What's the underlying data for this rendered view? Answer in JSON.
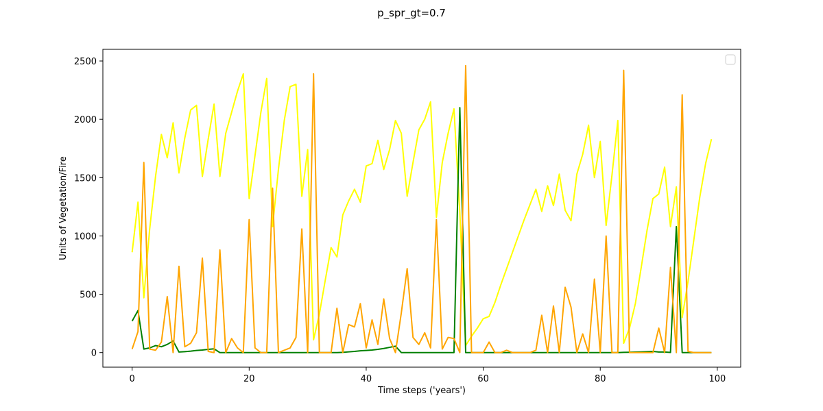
{
  "chart_data": {
    "type": "line",
    "title": "p_spr_gt=0.7",
    "xlabel": "Time steps ('years')",
    "ylabel": "Units of Vegetation/Fire",
    "xlim": [
      -5,
      104
    ],
    "ylim": [
      -125,
      2600
    ],
    "xticks": [
      0,
      20,
      40,
      60,
      80,
      100
    ],
    "yticks": [
      0,
      500,
      1000,
      1500,
      2000,
      2500
    ],
    "grid": false,
    "legend": "top-right",
    "series": [
      {
        "color": "#ffff00",
        "x": [
          0,
          1,
          2,
          3,
          4,
          5,
          6,
          7,
          8,
          9,
          10,
          11,
          12,
          13,
          14,
          15,
          16,
          17,
          18,
          19,
          20,
          21,
          22,
          23,
          24,
          25,
          26,
          27,
          28,
          29,
          30,
          31,
          32,
          33,
          34,
          35,
          36,
          37,
          38,
          39,
          40,
          41,
          42,
          43,
          44,
          45,
          46,
          47,
          48,
          49,
          50,
          51,
          52,
          53,
          54,
          55,
          56,
          57,
          58,
          59,
          60,
          61,
          62,
          63,
          64,
          65,
          66,
          67,
          68,
          69,
          70,
          71,
          72,
          73,
          74,
          75,
          76,
          77,
          78,
          79,
          80,
          81,
          82,
          83,
          84,
          85,
          86,
          87,
          88,
          89,
          90,
          91,
          92,
          93,
          94,
          95,
          96,
          97,
          98,
          99
        ],
        "y": [
          860,
          1290,
          470,
          1060,
          1510,
          1870,
          1670,
          1970,
          1540,
          1840,
          2080,
          2120,
          1510,
          1830,
          2130,
          1510,
          1880,
          2060,
          2240,
          2390,
          1320,
          1690,
          2060,
          2350,
          1080,
          1570,
          1990,
          2280,
          2300,
          1340,
          1740,
          110,
          330,
          620,
          900,
          820,
          1180,
          1300,
          1400,
          1290,
          1600,
          1620,
          1820,
          1570,
          1740,
          1990,
          1880,
          1340,
          1630,
          1910,
          2000,
          2150,
          1160,
          1630,
          1880,
          2090,
          1200,
          60,
          140,
          210,
          290,
          310,
          430,
          580,
          720,
          860,
          1000,
          1140,
          1270,
          1400,
          1210,
          1430,
          1260,
          1530,
          1220,
          1130,
          1530,
          1700,
          1950,
          1500,
          1810,
          1090,
          1520,
          1990,
          80,
          210,
          420,
          730,
          1050,
          1320,
          1360,
          1590,
          1080,
          1420,
          300,
          610,
          970,
          1330,
          1620,
          1830
        ]
      },
      {
        "color": "#008000",
        "x": [
          0,
          1,
          2,
          3,
          4,
          5,
          6,
          7,
          8,
          9,
          10,
          11,
          12,
          13,
          14,
          15,
          16,
          17,
          18,
          19,
          20,
          21,
          22,
          23,
          24,
          25,
          26,
          27,
          28,
          29,
          30,
          31,
          32,
          33,
          34,
          35,
          36,
          37,
          38,
          39,
          40,
          41,
          42,
          43,
          44,
          45,
          46,
          47,
          48,
          49,
          50,
          51,
          52,
          53,
          54,
          55,
          56,
          57,
          58,
          59,
          60,
          61,
          62,
          63,
          64,
          65,
          66,
          67,
          68,
          69,
          70,
          71,
          72,
          73,
          74,
          75,
          76,
          77,
          78,
          79,
          80,
          81,
          82,
          83,
          84,
          85,
          86,
          87,
          88,
          89,
          90,
          91,
          92,
          93,
          94,
          95,
          96,
          97,
          98,
          99
        ],
        "y": [
          270,
          360,
          30,
          40,
          60,
          50,
          70,
          100,
          5,
          8,
          12,
          18,
          22,
          28,
          32,
          0,
          0,
          0,
          0,
          0,
          0,
          0,
          0,
          0,
          0,
          0,
          0,
          0,
          0,
          0,
          0,
          0,
          0,
          0,
          0,
          0,
          2,
          6,
          10,
          15,
          18,
          22,
          28,
          35,
          45,
          55,
          0,
          0,
          0,
          0,
          0,
          0,
          0,
          0,
          0,
          0,
          2100,
          0,
          0,
          0,
          0,
          0,
          0,
          0,
          0,
          0,
          0,
          0,
          0,
          0,
          0,
          0,
          0,
          0,
          0,
          0,
          0,
          0,
          0,
          0,
          0,
          0,
          0,
          0,
          2,
          3,
          4,
          6,
          8,
          10,
          5,
          5,
          1,
          1080,
          0,
          0,
          0,
          0,
          0,
          0
        ]
      },
      {
        "color": "#ffa500",
        "x": [
          0,
          1,
          2,
          3,
          4,
          5,
          6,
          7,
          8,
          9,
          10,
          11,
          12,
          13,
          14,
          15,
          16,
          17,
          18,
          19,
          20,
          21,
          22,
          23,
          24,
          25,
          26,
          27,
          28,
          29,
          30,
          31,
          32,
          33,
          34,
          35,
          36,
          37,
          38,
          39,
          40,
          41,
          42,
          43,
          44,
          45,
          46,
          47,
          48,
          49,
          50,
          51,
          52,
          53,
          54,
          55,
          56,
          57,
          58,
          59,
          60,
          61,
          62,
          63,
          64,
          65,
          66,
          67,
          68,
          69,
          70,
          71,
          72,
          73,
          74,
          75,
          76,
          77,
          78,
          79,
          80,
          81,
          82,
          83,
          84,
          85,
          86,
          87,
          88,
          89,
          90,
          91,
          92,
          93,
          94,
          95,
          96,
          97,
          98,
          99
        ],
        "y": [
          30,
          180,
          1630,
          30,
          20,
          90,
          480,
          0,
          740,
          50,
          80,
          170,
          810,
          10,
          0,
          880,
          0,
          120,
          40,
          0,
          1140,
          40,
          0,
          0,
          1410,
          0,
          20,
          40,
          130,
          1060,
          0,
          2390,
          0,
          0,
          0,
          380,
          0,
          240,
          220,
          420,
          40,
          280,
          70,
          460,
          120,
          0,
          340,
          720,
          130,
          70,
          170,
          40,
          1140,
          30,
          130,
          120,
          0,
          2460,
          0,
          0,
          0,
          90,
          0,
          0,
          20,
          0,
          0,
          0,
          0,
          20,
          320,
          0,
          400,
          0,
          560,
          390,
          0,
          160,
          0,
          630,
          0,
          1000,
          0,
          0,
          2420,
          0,
          0,
          0,
          0,
          0,
          210,
          0,
          730,
          0,
          2210,
          10,
          0,
          0,
          0,
          0
        ]
      }
    ]
  }
}
